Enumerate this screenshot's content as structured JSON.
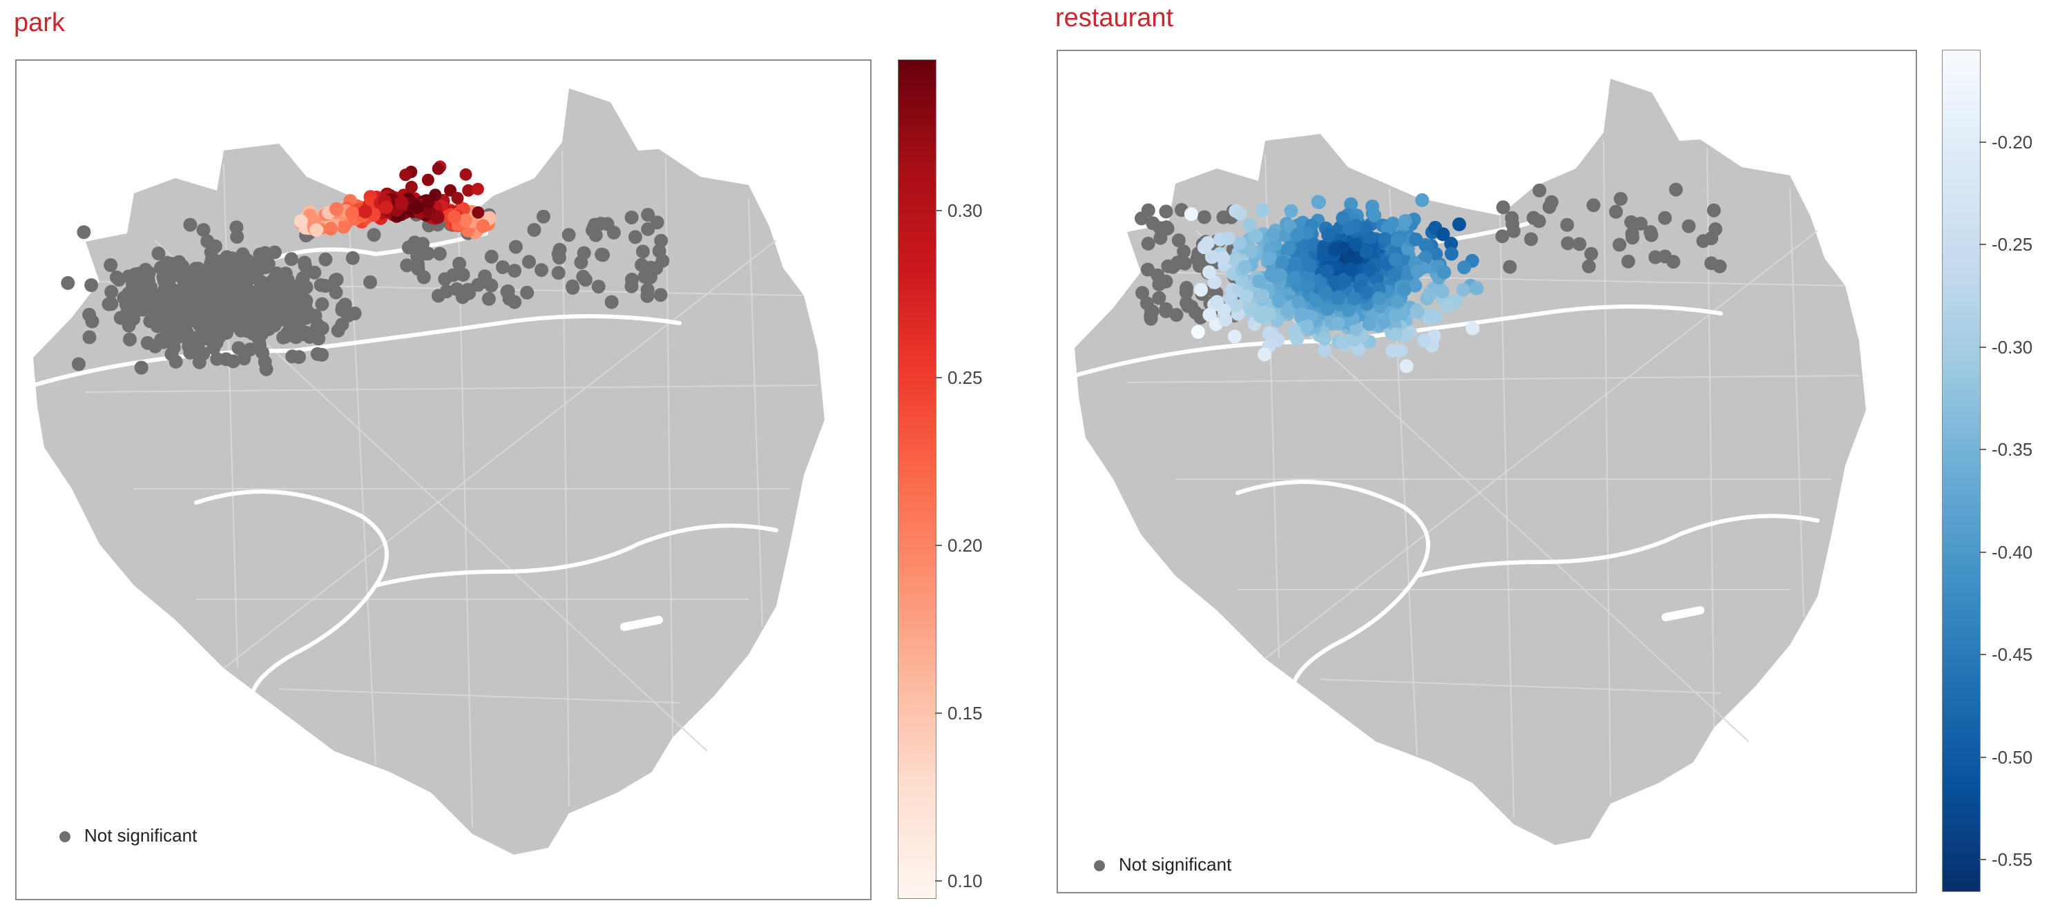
{
  "chart_data": [
    {
      "type": "scatter",
      "title": "park",
      "colorbar": {
        "colormap": "Reds",
        "range": [
          0.095,
          0.345
        ],
        "ticks": [
          "0.10",
          "0.15",
          "0.20",
          "0.25",
          "0.30"
        ]
      },
      "legend": {
        "label": "Not significant",
        "position": "bottom-left",
        "color": "#6e6e6e"
      },
      "background": {
        "fill": "#c4c4c4",
        "roads": "#dcdcdc",
        "rivers": "#ffffff"
      }
    },
    {
      "type": "scatter",
      "title": "restaurant",
      "colorbar": {
        "colormap": "Blues_r",
        "range": [
          -0.565,
          -0.155
        ],
        "ticks": [
          "-0.20",
          "-0.25",
          "-0.30",
          "-0.35",
          "-0.40",
          "-0.45",
          "-0.50",
          "-0.55"
        ]
      },
      "legend": {
        "label": "Not significant",
        "position": "bottom-left",
        "color": "#6e6e6e"
      },
      "background": {
        "fill": "#c4c4c4",
        "roads": "#dcdcdc",
        "rivers": "#ffffff"
      }
    }
  ]
}
